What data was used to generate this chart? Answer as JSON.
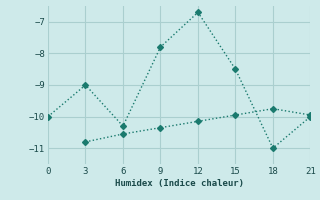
{
  "xlabel": "Humidex (Indice chaleur)",
  "line1_x": [
    0,
    3,
    6,
    9,
    12,
    15,
    18,
    21
  ],
  "line1_y": [
    -10.0,
    -9.0,
    -10.3,
    -7.8,
    -6.7,
    -8.5,
    -11.0,
    -10.0
  ],
  "line2_x": [
    3,
    6,
    9,
    12,
    15,
    18,
    21
  ],
  "line2_y": [
    -10.8,
    -10.55,
    -10.35,
    -10.15,
    -9.95,
    -9.75,
    -9.95
  ],
  "line_color": "#1a7a6e",
  "bg_color": "#ceeaea",
  "grid_color": "#aacfcf",
  "xlim": [
    0,
    21
  ],
  "ylim": [
    -11.5,
    -6.5
  ],
  "xticks": [
    0,
    3,
    6,
    9,
    12,
    15,
    18,
    21
  ],
  "yticks": [
    -7,
    -8,
    -9,
    -10,
    -11
  ],
  "marker": "D",
  "markersize": 3,
  "linewidth": 1.0
}
